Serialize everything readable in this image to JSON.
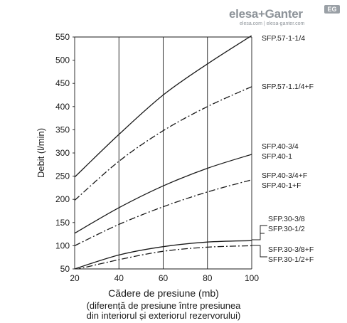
{
  "brand": {
    "name": "elesa+Ganter",
    "site": "elesa.com | elesa-ganter.com",
    "badge": "EG"
  },
  "chart_data": {
    "type": "line",
    "title": "",
    "xlabel": "Cădere de presiune (mb)",
    "xlabel_note": [
      "(diferență de presiune între presiunea",
      "din interiorul și exteriorul rezervorului)"
    ],
    "ylabel": "Debit (l/min)",
    "xlim": [
      20,
      100
    ],
    "ylim": [
      50,
      550
    ],
    "xticks": [
      20,
      40,
      60,
      80,
      100
    ],
    "yticks": [
      50,
      100,
      150,
      200,
      250,
      300,
      350,
      400,
      450,
      500,
      550
    ],
    "grid": "vertical",
    "series": [
      {
        "labels": [
          "SFP.57-1-1/4"
        ],
        "style": "solid",
        "x": [
          20,
          40,
          60,
          80,
          100
        ],
        "y": [
          248,
          340,
          425,
          492,
          553
        ]
      },
      {
        "labels": [
          "SFP.57-1.1/4+F"
        ],
        "style": "dashdot",
        "x": [
          20,
          40,
          60,
          80,
          100
        ],
        "y": [
          198,
          282,
          348,
          400,
          443
        ]
      },
      {
        "labels": [
          "SFP.40-3/4",
          "SFP.40-1"
        ],
        "style": "solid",
        "x": [
          20,
          40,
          60,
          80,
          100
        ],
        "y": [
          127,
          182,
          229,
          267,
          297
        ]
      },
      {
        "labels": [
          "SFP.40-3/4+F",
          "SFP.40-1+F"
        ],
        "style": "dashdot",
        "x": [
          20,
          40,
          60,
          80,
          100
        ],
        "y": [
          100,
          146,
          184,
          216,
          242
        ]
      },
      {
        "labels": [
          "SFP.30-3/8",
          "SFP.30-1/2"
        ],
        "style": "solid",
        "x": [
          20,
          40,
          60,
          80,
          100
        ],
        "y": [
          50,
          80,
          98,
          108,
          111
        ]
      },
      {
        "labels": [
          "SFP.30-3/8+F",
          "SFP.30-1/2+F"
        ],
        "style": "dashdot",
        "x": [
          20,
          40,
          60,
          80,
          100
        ],
        "y": [
          48,
          70,
          88,
          97,
          100
        ]
      }
    ]
  }
}
